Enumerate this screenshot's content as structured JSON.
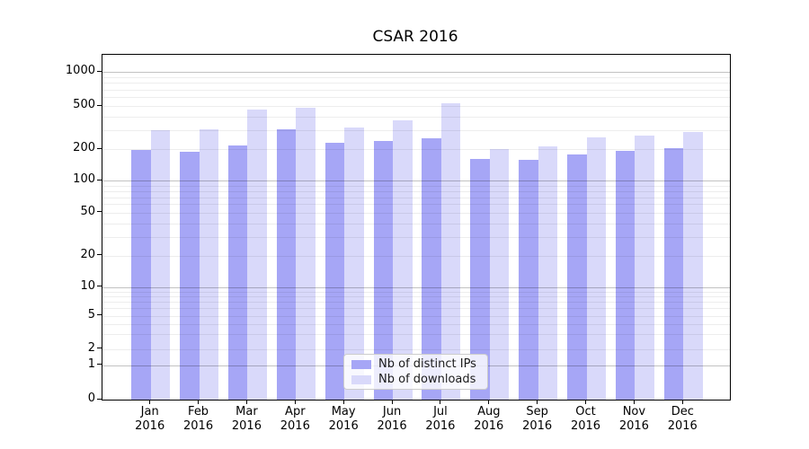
{
  "title": "CSAR 2016",
  "chart_data": {
    "type": "bar",
    "title": "CSAR 2016",
    "categories": [
      "Jan 2016",
      "Feb 2016",
      "Mar 2016",
      "Apr 2016",
      "May 2016",
      "Jun 2016",
      "Jul 2016",
      "Aug 2016",
      "Sep 2016",
      "Oct 2016",
      "Nov 2016",
      "Dec 2016"
    ],
    "x_tick_months": [
      "Jan",
      "Feb",
      "Mar",
      "Apr",
      "May",
      "Jun",
      "Jul",
      "Aug",
      "Sep",
      "Oct",
      "Nov",
      "Dec"
    ],
    "x_tick_year": "2016",
    "series": [
      {
        "name": "Nb of distinct IPs",
        "color": "#a6a6f6",
        "values": [
          196,
          191,
          218,
          308,
          230,
          238,
          252,
          161,
          158,
          177,
          193,
          206
        ]
      },
      {
        "name": "Nb of downloads",
        "color": "#d9d9fa",
        "values": [
          300,
          305,
          468,
          487,
          320,
          370,
          535,
          202,
          212,
          256,
          267,
          286
        ]
      }
    ],
    "y_axis": {
      "scale": "symlog",
      "tick_labels": [
        "0",
        "1",
        "2",
        "5",
        "10",
        "20",
        "50",
        "100",
        "200",
        "500",
        "1000"
      ],
      "ticks": [
        0,
        1,
        2,
        5,
        10,
        20,
        50,
        100,
        200,
        500,
        1000
      ],
      "major_gridlines": [
        1,
        10,
        100,
        1000
      ],
      "minor_gridlines": [
        2,
        3,
        4,
        5,
        6,
        7,
        8,
        9,
        20,
        30,
        40,
        50,
        60,
        70,
        80,
        90,
        200,
        300,
        400,
        500,
        600,
        700,
        800,
        900
      ],
      "ylim": [
        0,
        1500
      ]
    },
    "grid": true,
    "legend_position": "lower center"
  }
}
